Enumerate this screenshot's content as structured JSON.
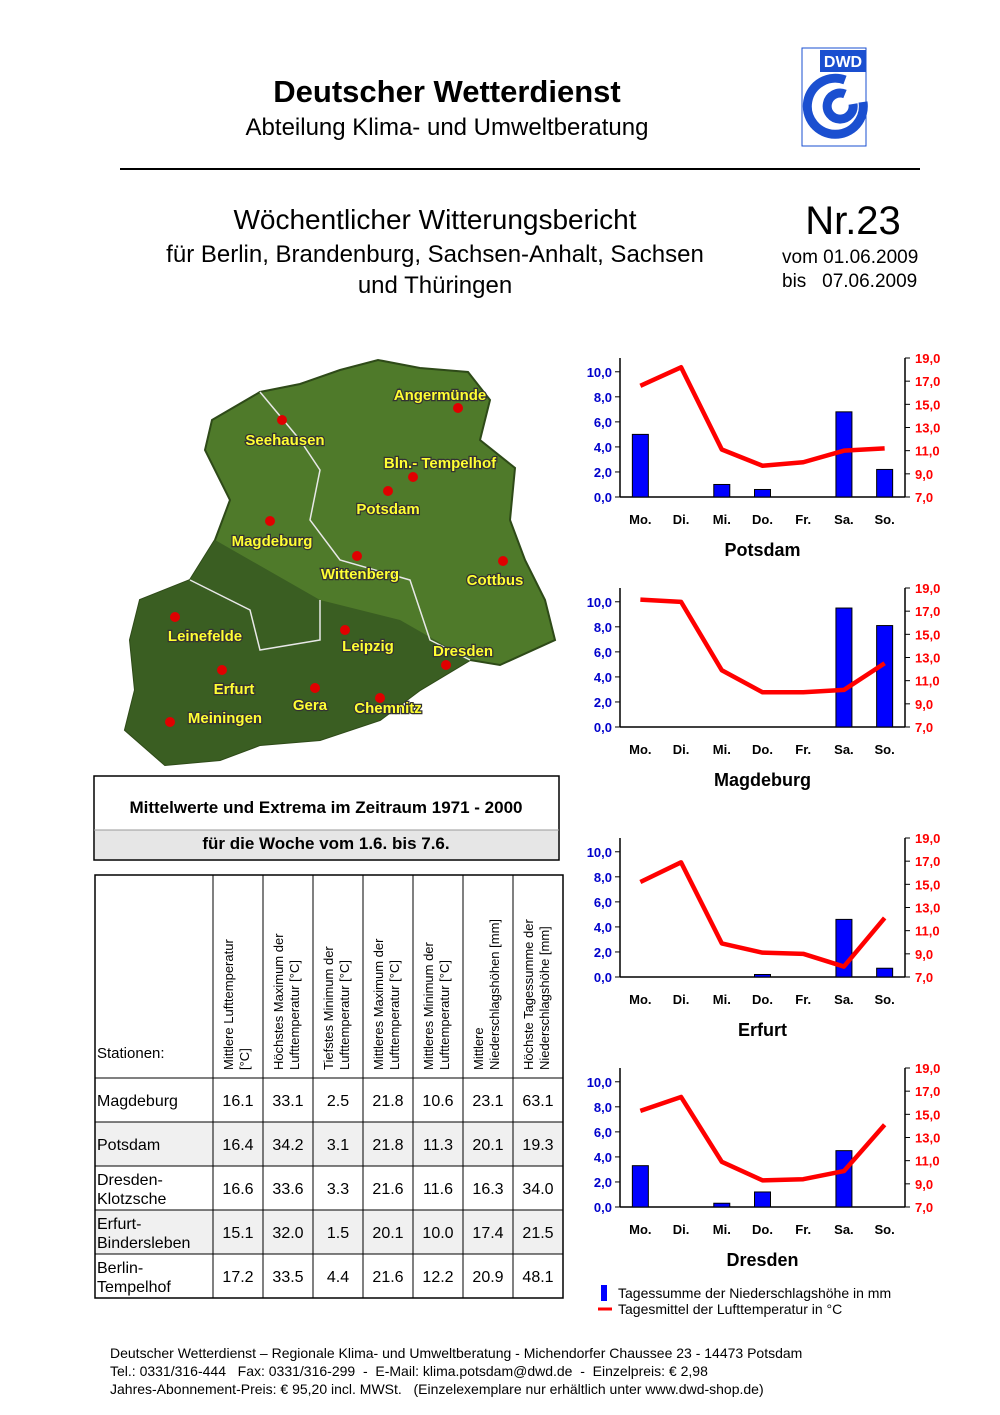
{
  "header": {
    "org": "Deutscher Wetterdienst",
    "dept": "Abteilung Klima- und Umweltberatung",
    "logo": "DWD"
  },
  "report": {
    "title_lines": [
      "Wöchentlicher Witterungsbericht",
      "für Berlin, Brandenburg, Sachsen-Anhalt, Sachsen",
      "und Thüringen"
    ],
    "number": "Nr.23",
    "from": "vom 01.06.2009",
    "to": "bis   07.06.2009"
  },
  "map": {
    "cities": [
      "Angermünde",
      "Seehausen",
      "Bln.- Tempelhof",
      "Potsdam",
      "Magdeburg",
      "Wittenberg",
      "Cottbus",
      "Leinefelde",
      "Leipzig",
      "Dresden",
      "Erfurt",
      "Gera",
      "Chemnitz",
      "Meiningen"
    ]
  },
  "climate_box": {
    "line1": "Mittelwerte und Extrema im Zeitraum 1971 - 2000",
    "line2": "für die Woche vom 1.6. bis 7.6."
  },
  "table": {
    "headers": [
      [
        "Stationen:"
      ],
      [
        "Mittlere Lufttemperatur",
        "[°C]"
      ],
      [
        "Höchstes Maximum der",
        "Lufttemperatur [°C]"
      ],
      [
        "Tiefstes Minimum der",
        "Lufttemperatur [°C]"
      ],
      [
        "Mittleres Maximum der",
        "Lufttemperatur [°C]"
      ],
      [
        "Mittleres Minimum der",
        "Lufttemperatur [°C]"
      ],
      [
        "Mittlere",
        "Niederschlagshöhen [mm]"
      ],
      [
        "Höchste Tagessumme der",
        "Niederschlagshöhe [mm]"
      ]
    ],
    "rows": [
      [
        [
          "Magdeburg"
        ],
        "16.1",
        "33.1",
        "2.5",
        "21.8",
        "10.6",
        "23.1",
        "63.1"
      ],
      [
        [
          "Potsdam"
        ],
        "16.4",
        "34.2",
        "3.1",
        "21.8",
        "11.3",
        "20.1",
        "19.3"
      ],
      [
        [
          "Dresden-",
          "Klotzsche"
        ],
        "16.6",
        "33.6",
        "3.3",
        "21.6",
        "11.6",
        "16.3",
        "34.0"
      ],
      [
        [
          "Erfurt-",
          "Bindersleben"
        ],
        "15.1",
        "32.0",
        "1.5",
        "20.1",
        "10.0",
        "17.4",
        "21.5"
      ],
      [
        [
          "Berlin-",
          "Tempelhof"
        ],
        "17.2",
        "33.5",
        "4.4",
        "21.6",
        "12.2",
        "20.9",
        "48.1"
      ]
    ]
  },
  "chart_data": [
    {
      "type": "bar-line",
      "title": "Potsdam",
      "categories": [
        "Mo.",
        "Di.",
        "Mi.",
        "Do.",
        "Fr.",
        "Sa.",
        "So."
      ],
      "series": [
        {
          "color": "#0000ff",
          "values": [
            5.0,
            0,
            1.0,
            0.6,
            0,
            6.8,
            2.2
          ]
        },
        {
          "color": "#ff0000",
          "axis": "y2",
          "values": [
            16.6,
            18.2,
            11.1,
            9.7,
            10.0,
            11.0,
            11.2
          ]
        }
      ],
      "ylim": [
        0,
        11.1
      ],
      "yticks": [
        {
          "value": 0,
          "label": "0,0"
        },
        {
          "value": 2,
          "label": "2,0"
        },
        {
          "value": 4,
          "label": "4,0"
        },
        {
          "value": 6,
          "label": "6,0"
        },
        {
          "value": 8,
          "label": "8,0"
        },
        {
          "value": 10,
          "label": "10,0"
        }
      ],
      "y2lim": [
        7,
        19
      ],
      "y2ticks": [
        {
          "value": 7,
          "label": "7,0"
        },
        {
          "value": 9,
          "label": "9,0"
        },
        {
          "value": 11,
          "label": "11,0"
        },
        {
          "value": 13,
          "label": "13,0"
        },
        {
          "value": 15,
          "label": "15,0"
        },
        {
          "value": 17,
          "label": "17,0"
        },
        {
          "value": 19,
          "label": "19,0"
        }
      ]
    },
    {
      "type": "bar-line",
      "title": "Magdeburg",
      "categories": [
        "Mo.",
        "Di.",
        "Mi.",
        "Do.",
        "Fr.",
        "Sa.",
        "So."
      ],
      "series": [
        {
          "color": "#0000ff",
          "values": [
            0,
            0,
            0,
            0,
            0,
            9.5,
            8.1
          ]
        },
        {
          "color": "#ff0000",
          "axis": "y2",
          "values": [
            18.0,
            17.8,
            11.9,
            10.0,
            10.0,
            10.2,
            12.5
          ]
        }
      ],
      "ylim": [
        0,
        11.1
      ],
      "yticks": [
        {
          "value": 0,
          "label": "0,0"
        },
        {
          "value": 2,
          "label": "2,0"
        },
        {
          "value": 4,
          "label": "4,0"
        },
        {
          "value": 6,
          "label": "6,0"
        },
        {
          "value": 8,
          "label": "8,0"
        },
        {
          "value": 10,
          "label": "10,0"
        }
      ],
      "y2lim": [
        7,
        19
      ],
      "y2ticks": [
        {
          "value": 7,
          "label": "7,0"
        },
        {
          "value": 9,
          "label": "9,0"
        },
        {
          "value": 11,
          "label": "11,0"
        },
        {
          "value": 13,
          "label": "13,0"
        },
        {
          "value": 15,
          "label": "15,0"
        },
        {
          "value": 17,
          "label": "17,0"
        },
        {
          "value": 19,
          "label": "19,0"
        }
      ]
    },
    {
      "type": "bar-line",
      "title": "Erfurt",
      "categories": [
        "Mo.",
        "Di.",
        "Mi.",
        "Do.",
        "Fr.",
        "Sa.",
        "So."
      ],
      "series": [
        {
          "color": "#0000ff",
          "values": [
            0,
            0,
            0,
            0.2,
            0,
            4.6,
            0.7
          ]
        },
        {
          "color": "#ff0000",
          "axis": "y2",
          "values": [
            15.2,
            16.9,
            9.9,
            9.1,
            9.0,
            7.9,
            12.1
          ]
        }
      ],
      "ylim": [
        0,
        11.1
      ],
      "yticks": [
        {
          "value": 0,
          "label": "0,0"
        },
        {
          "value": 2,
          "label": "2,0"
        },
        {
          "value": 4,
          "label": "4,0"
        },
        {
          "value": 6,
          "label": "6,0"
        },
        {
          "value": 8,
          "label": "8,0"
        },
        {
          "value": 10,
          "label": "10,0"
        }
      ],
      "y2lim": [
        7,
        19
      ],
      "y2ticks": [
        {
          "value": 7,
          "label": "7,0"
        },
        {
          "value": 9,
          "label": "9,0"
        },
        {
          "value": 11,
          "label": "11,0"
        },
        {
          "value": 13,
          "label": "13,0"
        },
        {
          "value": 15,
          "label": "15,0"
        },
        {
          "value": 17,
          "label": "17,0"
        },
        {
          "value": 19,
          "label": "19,0"
        }
      ]
    },
    {
      "type": "bar-line",
      "title": "Dresden",
      "categories": [
        "Mo.",
        "Di.",
        "Mi.",
        "Do.",
        "Fr.",
        "Sa.",
        "So."
      ],
      "series": [
        {
          "color": "#0000ff",
          "values": [
            3.3,
            0,
            0.3,
            1.2,
            0,
            4.5,
            0
          ]
        },
        {
          "color": "#ff0000",
          "axis": "y2",
          "values": [
            15.3,
            16.5,
            10.9,
            9.3,
            9.4,
            10.1,
            14.1
          ]
        }
      ],
      "ylim": [
        0,
        11.1
      ],
      "yticks": [
        {
          "value": 0,
          "label": "0,0"
        },
        {
          "value": 2,
          "label": "2,0"
        },
        {
          "value": 4,
          "label": "4,0"
        },
        {
          "value": 6,
          "label": "6,0"
        },
        {
          "value": 8,
          "label": "8,0"
        },
        {
          "value": 10,
          "label": "10,0"
        }
      ],
      "y2lim": [
        7,
        19
      ],
      "y2ticks": [
        {
          "value": 7,
          "label": "7,0"
        },
        {
          "value": 9,
          "label": "9,0"
        },
        {
          "value": 11,
          "label": "11,0"
        },
        {
          "value": 13,
          "label": "13,0"
        },
        {
          "value": 15,
          "label": "15,0"
        },
        {
          "value": 17,
          "label": "17,0"
        },
        {
          "value": 19,
          "label": "19,0"
        }
      ]
    }
  ],
  "legend": [
    {
      "label": "Tagessumme der Niederschlagshöhe in mm",
      "color": "#0000ff"
    },
    {
      "label": "Tagesmittel der Lufttemperatur in °C",
      "color": "#ff0000"
    }
  ],
  "footer": [
    "Deutscher Wetterdienst – Regionale Klima- und Umweltberatung - Michendorfer Chaussee 23 - 14473 Potsdam",
    "Tel.: 0331/316-444   Fax: 0331/316-299  -  E-Mail: klima.potsdam@dwd.de  -  Einzelpreis: € 2,98",
    "Jahres-Abonnement-Preis: € 95,20 incl. MWSt.   (Einzelexemplare nur erhältlich unter www.dwd-shop.de)"
  ]
}
